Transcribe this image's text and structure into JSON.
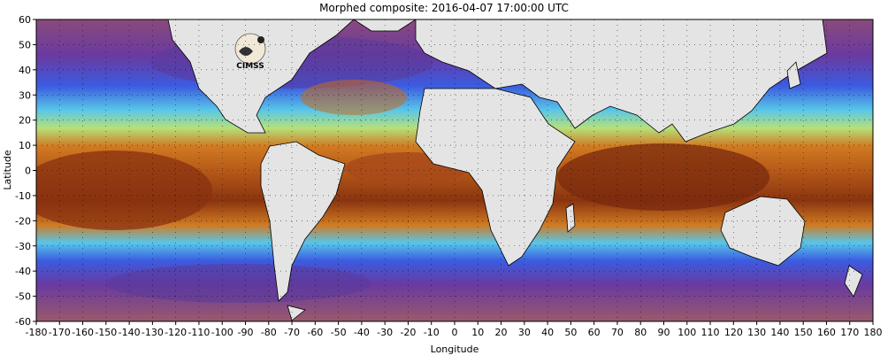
{
  "title": "Morphed composite: 2016-04-07 17:00:00 UTC",
  "xlabel": "Longitude",
  "ylabel": "Latitude",
  "x_ticks": [
    "-180",
    "-170",
    "-160",
    "-150",
    "-140",
    "-130",
    "-120",
    "-110",
    "-100",
    "-90",
    "-80",
    "-70",
    "-60",
    "-50",
    "-40",
    "-30",
    "-20",
    "-10",
    "0",
    "10",
    "20",
    "30",
    "40",
    "50",
    "60",
    "70",
    "80",
    "90",
    "100",
    "110",
    "120",
    "130",
    "140",
    "150",
    "160",
    "170",
    "180"
  ],
  "y_ticks": [
    "60",
    "50",
    "40",
    "30",
    "20",
    "10",
    "0",
    "-10",
    "-20",
    "-30",
    "-40",
    "-50",
    "-60"
  ],
  "logo_text": "CIMSS",
  "colors": {
    "land": "#e4e4e4",
    "ocean_dry": "#7b3f8f",
    "ocean_low": "#2a55d8",
    "ocean_mid": "#5fd0e6",
    "ocean_high": "#c86a1a",
    "ocean_max": "#7a2a0e",
    "frame": "#000000"
  },
  "map_extent": {
    "lon": [
      -180,
      180
    ],
    "lat": [
      -60,
      60
    ]
  }
}
